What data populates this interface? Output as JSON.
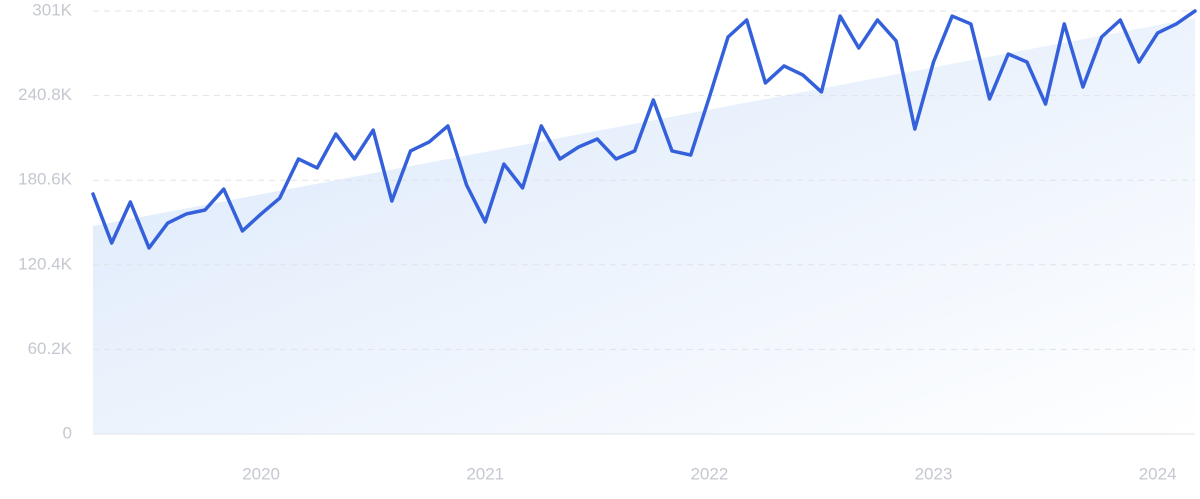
{
  "chart_data": {
    "type": "line",
    "categories": [
      null,
      null,
      null,
      null,
      null,
      null,
      null,
      null,
      null,
      "2020",
      null,
      null,
      null,
      null,
      null,
      null,
      null,
      null,
      null,
      null,
      null,
      "2021",
      null,
      null,
      null,
      null,
      null,
      null,
      null,
      null,
      null,
      null,
      null,
      "2022",
      null,
      null,
      null,
      null,
      null,
      null,
      null,
      null,
      null,
      null,
      null,
      "2023",
      null,
      null,
      null,
      null,
      null,
      null,
      null,
      null,
      null,
      null,
      null,
      "2024",
      null,
      null
    ],
    "series": [
      {
        "color": "#3461db",
        "values": [
          170800,
          135900,
          165100,
          132400,
          150100,
          156600,
          159400,
          174300,
          144500,
          156600,
          167900,
          195700,
          189300,
          213500,
          195700,
          216300,
          165800,
          201400,
          207800,
          219200,
          177200,
          150900,
          192100,
          175100,
          219200,
          195700,
          204200,
          209900,
          195700,
          201400,
          237700,
          201400,
          198500,
          239800,
          282500,
          294600,
          249800,
          261900,
          255500,
          243400,
          297400,
          274700,
          294600,
          279700,
          217000,
          264700,
          297400,
          291800,
          238400,
          270400,
          264700,
          234800,
          291800,
          246900,
          282500,
          294600,
          264700,
          285400,
          291800,
          301000
        ]
      }
    ],
    "trend": {
      "color": "#dce9fb",
      "values": [
        148000,
        296000
      ]
    },
    "ylim": [
      0,
      301000
    ],
    "yticks": [
      0,
      {
        "value": 60200,
        "label": "60.2K"
      },
      {
        "value": 120400,
        "label": "120.4K"
      },
      {
        "value": 180600,
        "label": "180.6K"
      },
      {
        "value": 240800,
        "label": "240.8K"
      },
      {
        "value": 301000,
        "label": "301K"
      }
    ],
    "grid": true
  }
}
